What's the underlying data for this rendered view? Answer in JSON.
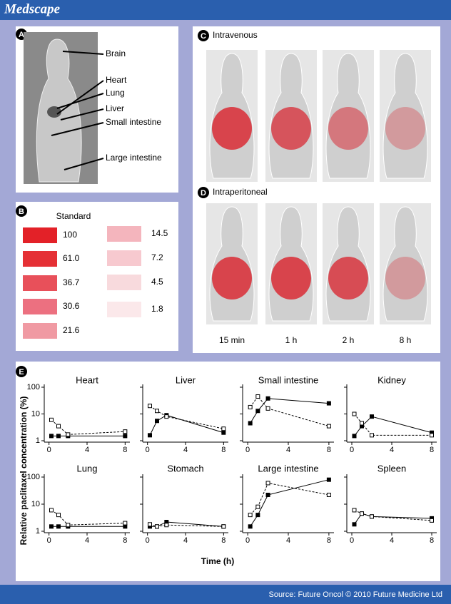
{
  "header": {
    "title": "Medscape"
  },
  "panel_a": {
    "letter": "A",
    "labels": [
      "Brain",
      "Heart",
      "Lung",
      "Liver",
      "Small intestine",
      "Large intestine"
    ]
  },
  "panel_b": {
    "letter": "B",
    "title": "Standard",
    "values": [
      "100",
      "61.0",
      "36.7",
      "30.6",
      "21.6",
      "14.5",
      "7.2",
      "4.5",
      "1.8"
    ]
  },
  "panel_c": {
    "letter": "C",
    "title": "Intravenous"
  },
  "panel_d": {
    "letter": "D",
    "title": "Intraperitoneal",
    "times": [
      "15 min",
      "1 h",
      "2 h",
      "8 h"
    ]
  },
  "panel_e": {
    "letter": "E",
    "ylabel": "Relative paclitaxel concentration (%)",
    "xlabel": "Time (h)"
  },
  "chart_data": [
    {
      "type": "line",
      "title": "Heart",
      "x": [
        0.25,
        1,
        2,
        8
      ],
      "xlim": [
        -0.5,
        8.5
      ],
      "xticks": [
        0,
        4,
        8
      ],
      "ylim": [
        1,
        100
      ],
      "yticks": [
        1,
        10,
        100
      ],
      "log_y": true,
      "series": [
        {
          "color": "#000000",
          "line": "solid",
          "marker": "filled",
          "values": [
            1.5,
            1.5,
            1.5,
            1.5
          ]
        },
        {
          "color": "#000000",
          "line": "dashed",
          "marker": "open",
          "values": [
            6,
            3.5,
            1.7,
            2.2
          ]
        }
      ]
    },
    {
      "type": "line",
      "title": "Liver",
      "x": [
        0.25,
        1,
        2,
        8
      ],
      "xlim": [
        -0.5,
        8.5
      ],
      "xticks": [
        0,
        4,
        8
      ],
      "ylim": [
        1,
        100
      ],
      "yticks": [
        1,
        10,
        100
      ],
      "log_y": true,
      "series": [
        {
          "color": "#000000",
          "line": "solid",
          "marker": "filled",
          "values": [
            1.6,
            5.5,
            9,
            2
          ]
        },
        {
          "color": "#000000",
          "line": "dashed",
          "marker": "open",
          "values": [
            20,
            13,
            8,
            2.8
          ]
        }
      ]
    },
    {
      "type": "line",
      "title": "Small intestine",
      "x": [
        0.25,
        1,
        2,
        8
      ],
      "xlim": [
        -0.5,
        8.5
      ],
      "xticks": [
        0,
        4,
        8
      ],
      "ylim": [
        1,
        100
      ],
      "yticks": [
        1,
        10,
        100
      ],
      "log_y": true,
      "series": [
        {
          "color": "#000000",
          "line": "solid",
          "marker": "filled",
          "values": [
            4.5,
            13,
            38,
            25
          ]
        },
        {
          "color": "#000000",
          "line": "dashed",
          "marker": "open",
          "values": [
            18,
            45,
            16,
            3.5
          ]
        }
      ]
    },
    {
      "type": "line",
      "title": "Kidney",
      "x": [
        0.25,
        1,
        2,
        8
      ],
      "xlim": [
        -0.5,
        8.5
      ],
      "xticks": [
        0,
        4,
        8
      ],
      "ylim": [
        1,
        100
      ],
      "yticks": [
        1,
        10,
        100
      ],
      "log_y": true,
      "series": [
        {
          "color": "#000000",
          "line": "solid",
          "marker": "filled",
          "values": [
            1.5,
            3.5,
            8,
            2
          ]
        },
        {
          "color": "#000000",
          "line": "dashed",
          "marker": "open",
          "values": [
            10,
            4.5,
            1.6,
            1.6
          ]
        }
      ]
    },
    {
      "type": "line",
      "title": "Lung",
      "x": [
        0.25,
        1,
        2,
        8
      ],
      "xlim": [
        -0.5,
        8.5
      ],
      "xticks": [
        0,
        4,
        8
      ],
      "ylim": [
        1,
        100
      ],
      "yticks": [
        1,
        10,
        100
      ],
      "log_y": true,
      "series": [
        {
          "color": "#000000",
          "line": "solid",
          "marker": "filled",
          "values": [
            1.5,
            1.5,
            1.5,
            1.5
          ]
        },
        {
          "color": "#000000",
          "line": "dashed",
          "marker": "open",
          "values": [
            6,
            4,
            1.7,
            2
          ]
        }
      ]
    },
    {
      "type": "line",
      "title": "Stomach",
      "x": [
        0.25,
        1,
        2,
        8
      ],
      "xlim": [
        -0.5,
        8.5
      ],
      "xticks": [
        0,
        4,
        8
      ],
      "ylim": [
        1,
        100
      ],
      "yticks": [
        1,
        10,
        100
      ],
      "log_y": true,
      "series": [
        {
          "color": "#000000",
          "line": "solid",
          "marker": "filled",
          "values": [
            1.5,
            1.5,
            2.2,
            1.5
          ]
        },
        {
          "color": "#000000",
          "line": "dashed",
          "marker": "open",
          "values": [
            1.8,
            1.5,
            1.7,
            1.5
          ]
        }
      ]
    },
    {
      "type": "line",
      "title": "Large intestine",
      "x": [
        0.25,
        1,
        2,
        8
      ],
      "xlim": [
        -0.5,
        8.5
      ],
      "xticks": [
        0,
        4,
        8
      ],
      "ylim": [
        1,
        100
      ],
      "yticks": [
        1,
        10,
        100
      ],
      "log_y": true,
      "series": [
        {
          "color": "#000000",
          "line": "solid",
          "marker": "filled",
          "values": [
            1.5,
            4,
            22,
            80
          ]
        },
        {
          "color": "#000000",
          "line": "dashed",
          "marker": "open",
          "values": [
            4,
            8,
            60,
            22
          ]
        }
      ]
    },
    {
      "type": "line",
      "title": "Spleen",
      "x": [
        0.25,
        1,
        2,
        8
      ],
      "xlim": [
        -0.5,
        8.5
      ],
      "xticks": [
        0,
        4,
        8
      ],
      "ylim": [
        1,
        100
      ],
      "yticks": [
        1,
        10,
        100
      ],
      "log_y": true,
      "series": [
        {
          "color": "#000000",
          "line": "solid",
          "marker": "filled",
          "values": [
            1.8,
            4.5,
            3.5,
            3
          ]
        },
        {
          "color": "#000000",
          "line": "dashed",
          "marker": "open",
          "values": [
            6,
            4.5,
            3.5,
            2.5
          ]
        }
      ]
    }
  ],
  "footer": {
    "source": "Source: Future Oncol © 2010 Future Medicine Ltd"
  }
}
